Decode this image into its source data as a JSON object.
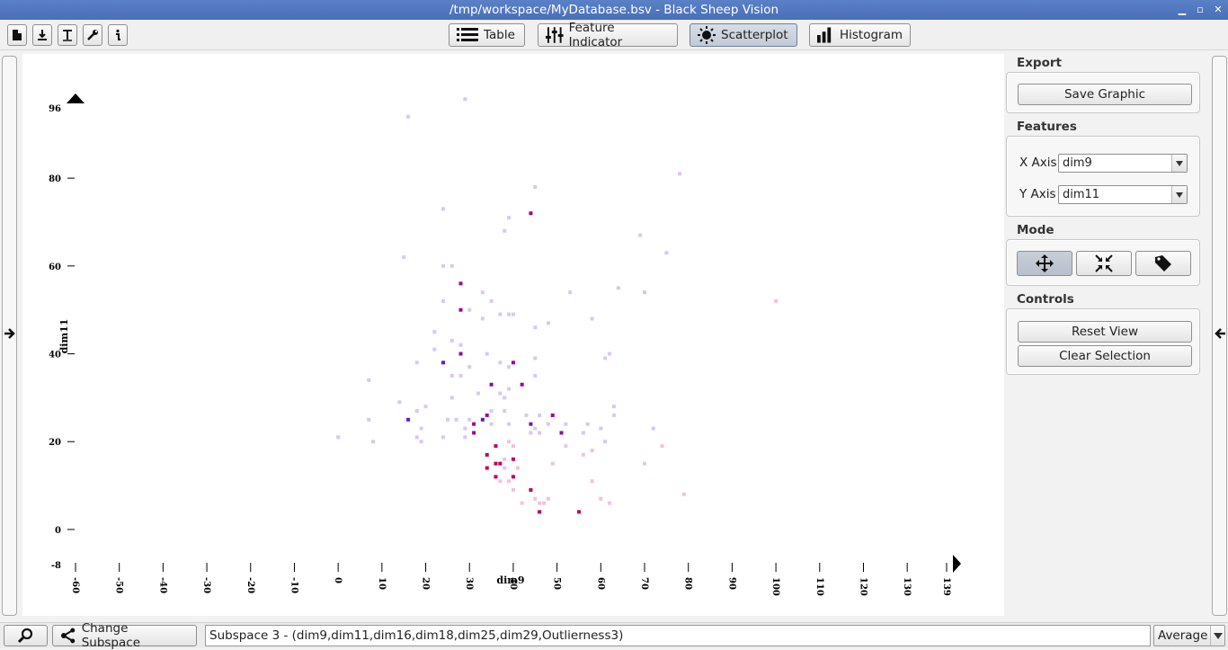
{
  "window": {
    "title": "/tmp/workspace/MyDatabase.bsv - Black Sheep Vision",
    "controls": [
      "minimize-icon",
      "maximize-icon",
      "close-icon"
    ]
  },
  "toolbar": {
    "small_icons": [
      "new-file-icon",
      "import-icon",
      "text-tool-icon",
      "wrench-icon",
      "info-icon"
    ],
    "tabs": [
      {
        "label": "Table",
        "icon": "list-icon",
        "active": false
      },
      {
        "label": "Feature Indicator",
        "icon": "sliders-icon",
        "active": false
      },
      {
        "label": "Scatterplot",
        "icon": "sun-icon",
        "active": true
      },
      {
        "label": "Histogram",
        "icon": "bar-chart-icon",
        "active": false
      }
    ]
  },
  "panel": {
    "export": {
      "title": "Export",
      "save_label": "Save Graphic"
    },
    "features": {
      "title": "Features",
      "x_label": "X Axis",
      "x_value": "dim9",
      "y_label": "Y Axis",
      "y_value": "dim11"
    },
    "mode": {
      "title": "Mode",
      "buttons": [
        "move-arrows-icon",
        "shrink-arrows-icon",
        "tag-icon"
      ],
      "active": 0
    },
    "controls": {
      "title": "Controls",
      "reset_label": "Reset View",
      "clear_label": "Clear Selection"
    }
  },
  "statusbar": {
    "search_icon": "magnifier-icon",
    "change_subspace_label": "Change Subspace",
    "subspace_text": "Subspace 3 - (dim9,dim11,dim16,dim18,dim25,dim29,Outlierness3)",
    "aggregate_value": "Average"
  },
  "chart_data": {
    "type": "scatter",
    "xlabel": "dim9",
    "ylabel": "dim11",
    "xlim": [
      -60,
      139
    ],
    "ylim": [
      -8,
      96
    ],
    "x_ticks": [
      "-60",
      "-50",
      "-40",
      "-30",
      "-20",
      "-10",
      "0",
      "10",
      "20",
      "30",
      "40",
      "50",
      "60",
      "70",
      "80",
      "90",
      "100",
      "110",
      "120",
      "130",
      "139"
    ],
    "y_ticks": [
      "96",
      "80",
      "60",
      "40",
      "20",
      "0",
      "-8"
    ],
    "color_scale": [
      "#c8c4f0",
      "#5a1fd0",
      "#8a0aa0",
      "#c0005a"
    ],
    "points": [
      {
        "x": 29,
        "y": 98,
        "c": 0.05
      },
      {
        "x": 16,
        "y": 94,
        "c": 0.05
      },
      {
        "x": 78,
        "y": 81,
        "c": 0.1
      },
      {
        "x": 45,
        "y": 78,
        "c": 0.1
      },
      {
        "x": 24,
        "y": 73,
        "c": 0.1
      },
      {
        "x": 39,
        "y": 71,
        "c": 0.1
      },
      {
        "x": 44,
        "y": 72,
        "c": 0.8
      },
      {
        "x": 38,
        "y": 68,
        "c": 0.1
      },
      {
        "x": 69,
        "y": 67,
        "c": 0.1
      },
      {
        "x": 75,
        "y": 63,
        "c": 0.1
      },
      {
        "x": 15,
        "y": 62,
        "c": 0.1
      },
      {
        "x": 24,
        "y": 60,
        "c": 0.1
      },
      {
        "x": 26,
        "y": 60,
        "c": 0.1
      },
      {
        "x": 28,
        "y": 56,
        "c": 0.75
      },
      {
        "x": 64,
        "y": 55,
        "c": 0.1
      },
      {
        "x": 53,
        "y": 54,
        "c": 0.1
      },
      {
        "x": 70,
        "y": 54,
        "c": 0.1
      },
      {
        "x": 33,
        "y": 54,
        "c": 0.1
      },
      {
        "x": 100,
        "y": 52,
        "c": 0.15
      },
      {
        "x": 24,
        "y": 52,
        "c": 0.1
      },
      {
        "x": 35,
        "y": 52,
        "c": 0.1
      },
      {
        "x": 28,
        "y": 50,
        "c": 0.75
      },
      {
        "x": 30,
        "y": 50,
        "c": 0.1
      },
      {
        "x": 37,
        "y": 49,
        "c": 0.1
      },
      {
        "x": 39,
        "y": 49,
        "c": 0.1
      },
      {
        "x": 40,
        "y": 49,
        "c": 0.1
      },
      {
        "x": 58,
        "y": 48,
        "c": 0.1
      },
      {
        "x": 33,
        "y": 48,
        "c": 0.1
      },
      {
        "x": 48,
        "y": 47,
        "c": 0.1
      },
      {
        "x": 45,
        "y": 46,
        "c": 0.1
      },
      {
        "x": 22,
        "y": 45,
        "c": 0.1
      },
      {
        "x": 26,
        "y": 43,
        "c": 0.1
      },
      {
        "x": 28,
        "y": 42,
        "c": 0.1
      },
      {
        "x": 22,
        "y": 41,
        "c": 0.1
      },
      {
        "x": 62,
        "y": 40,
        "c": 0.1
      },
      {
        "x": 28,
        "y": 40,
        "c": 0.75
      },
      {
        "x": 34,
        "y": 40,
        "c": 0.1
      },
      {
        "x": 45,
        "y": 39,
        "c": 0.1
      },
      {
        "x": 61,
        "y": 39,
        "c": 0.1
      },
      {
        "x": 18,
        "y": 38,
        "c": 0.1
      },
      {
        "x": 24,
        "y": 38,
        "c": 0.45
      },
      {
        "x": 37,
        "y": 38,
        "c": 0.1
      },
      {
        "x": 40,
        "y": 38,
        "c": 0.75
      },
      {
        "x": 39,
        "y": 37,
        "c": 0.1
      },
      {
        "x": 30,
        "y": 37,
        "c": 0.1
      },
      {
        "x": 26,
        "y": 35,
        "c": 0.1
      },
      {
        "x": 28,
        "y": 35,
        "c": 0.1
      },
      {
        "x": 45,
        "y": 35,
        "c": 0.1
      },
      {
        "x": 7,
        "y": 34,
        "c": 0.1
      },
      {
        "x": 42,
        "y": 33,
        "c": 0.75
      },
      {
        "x": 35,
        "y": 33,
        "c": 0.75
      },
      {
        "x": 39,
        "y": 32,
        "c": 0.1
      },
      {
        "x": 37,
        "y": 31,
        "c": 0.1
      },
      {
        "x": 32,
        "y": 31,
        "c": 0.1
      },
      {
        "x": 38,
        "y": 30,
        "c": 0.1
      },
      {
        "x": 26,
        "y": 30,
        "c": 0.1
      },
      {
        "x": 14,
        "y": 29,
        "c": 0.1
      },
      {
        "x": 20,
        "y": 28,
        "c": 0.1
      },
      {
        "x": 63,
        "y": 28,
        "c": 0.1
      },
      {
        "x": 18,
        "y": 27,
        "c": 0.1
      },
      {
        "x": 35,
        "y": 27,
        "c": 0.1
      },
      {
        "x": 38,
        "y": 27,
        "c": 0.1
      },
      {
        "x": 63,
        "y": 26,
        "c": 0.1
      },
      {
        "x": 49,
        "y": 26,
        "c": 0.75
      },
      {
        "x": 34,
        "y": 26,
        "c": 0.75
      },
      {
        "x": 7,
        "y": 25,
        "c": 0.1
      },
      {
        "x": 16,
        "y": 25,
        "c": 0.45
      },
      {
        "x": 46,
        "y": 26,
        "c": 0.1
      },
      {
        "x": 43,
        "y": 26,
        "c": 0.1
      },
      {
        "x": 25,
        "y": 25,
        "c": 0.1
      },
      {
        "x": 27,
        "y": 25,
        "c": 0.1
      },
      {
        "x": 30,
        "y": 25,
        "c": 0.1
      },
      {
        "x": 33,
        "y": 25,
        "c": 0.45
      },
      {
        "x": 35,
        "y": 24,
        "c": 0.1
      },
      {
        "x": 52,
        "y": 24,
        "c": 0.1
      },
      {
        "x": 57,
        "y": 24,
        "c": 0.1
      },
      {
        "x": 44,
        "y": 24,
        "c": 0.5
      },
      {
        "x": 31,
        "y": 24,
        "c": 0.75
      },
      {
        "x": 39,
        "y": 24,
        "c": 0.1
      },
      {
        "x": 48,
        "y": 24,
        "c": 0.1
      },
      {
        "x": 45,
        "y": 23,
        "c": 0.1
      },
      {
        "x": 60,
        "y": 23,
        "c": 0.1
      },
      {
        "x": 72,
        "y": 23,
        "c": 0.1
      },
      {
        "x": 19,
        "y": 23,
        "c": 0.1
      },
      {
        "x": 29,
        "y": 23,
        "c": 0.1
      },
      {
        "x": 31,
        "y": 22,
        "c": 0.75
      },
      {
        "x": 51,
        "y": 22,
        "c": 0.75
      },
      {
        "x": 44,
        "y": 22,
        "c": 0.1
      },
      {
        "x": 46,
        "y": 22,
        "c": 0.1
      },
      {
        "x": 56,
        "y": 22,
        "c": 0.1
      },
      {
        "x": 24,
        "y": 21,
        "c": 0.1
      },
      {
        "x": 29,
        "y": 21,
        "c": 0.1
      },
      {
        "x": 0,
        "y": 21,
        "c": 0.1
      },
      {
        "x": 18,
        "y": 21,
        "c": 0.1
      },
      {
        "x": 8,
        "y": 20,
        "c": 0.1
      },
      {
        "x": 19,
        "y": 20,
        "c": 0.1
      },
      {
        "x": 39,
        "y": 20,
        "c": 0.15
      },
      {
        "x": 61,
        "y": 20,
        "c": 0.1
      },
      {
        "x": 40,
        "y": 19,
        "c": 0.15
      },
      {
        "x": 36,
        "y": 19,
        "c": 0.95
      },
      {
        "x": 74,
        "y": 19,
        "c": 0.15
      },
      {
        "x": 52,
        "y": 19,
        "c": 0.15
      },
      {
        "x": 58,
        "y": 18,
        "c": 0.15
      },
      {
        "x": 56,
        "y": 17,
        "c": 0.15
      },
      {
        "x": 34,
        "y": 17,
        "c": 0.95
      },
      {
        "x": 40,
        "y": 16,
        "c": 0.95
      },
      {
        "x": 38,
        "y": 16,
        "c": 0.15
      },
      {
        "x": 36,
        "y": 15,
        "c": 0.95
      },
      {
        "x": 37,
        "y": 15,
        "c": 0.95
      },
      {
        "x": 34,
        "y": 14,
        "c": 0.95
      },
      {
        "x": 49,
        "y": 15,
        "c": 0.15
      },
      {
        "x": 70,
        "y": 15,
        "c": 0.15
      },
      {
        "x": 38,
        "y": 14,
        "c": 0.15
      },
      {
        "x": 41,
        "y": 14,
        "c": 0.15
      },
      {
        "x": 36,
        "y": 12,
        "c": 0.95
      },
      {
        "x": 40,
        "y": 12,
        "c": 0.95
      },
      {
        "x": 39,
        "y": 11,
        "c": 0.15
      },
      {
        "x": 37,
        "y": 11,
        "c": 0.15
      },
      {
        "x": 58,
        "y": 11,
        "c": 0.15
      },
      {
        "x": 44,
        "y": 9,
        "c": 0.95
      },
      {
        "x": 40,
        "y": 9,
        "c": 0.15
      },
      {
        "x": 79,
        "y": 8,
        "c": 0.15
      },
      {
        "x": 48,
        "y": 7,
        "c": 0.15
      },
      {
        "x": 60,
        "y": 7,
        "c": 0.15
      },
      {
        "x": 45,
        "y": 7,
        "c": 0.15
      },
      {
        "x": 47,
        "y": 6,
        "c": 0.15
      },
      {
        "x": 42,
        "y": 6,
        "c": 0.15
      },
      {
        "x": 46,
        "y": 6,
        "c": 0.15
      },
      {
        "x": 62,
        "y": 6,
        "c": 0.15
      },
      {
        "x": 46,
        "y": 4,
        "c": 0.15
      },
      {
        "x": 46,
        "y": 4,
        "c": 0.95
      },
      {
        "x": 55,
        "y": 4,
        "c": 0.95
      }
    ]
  }
}
